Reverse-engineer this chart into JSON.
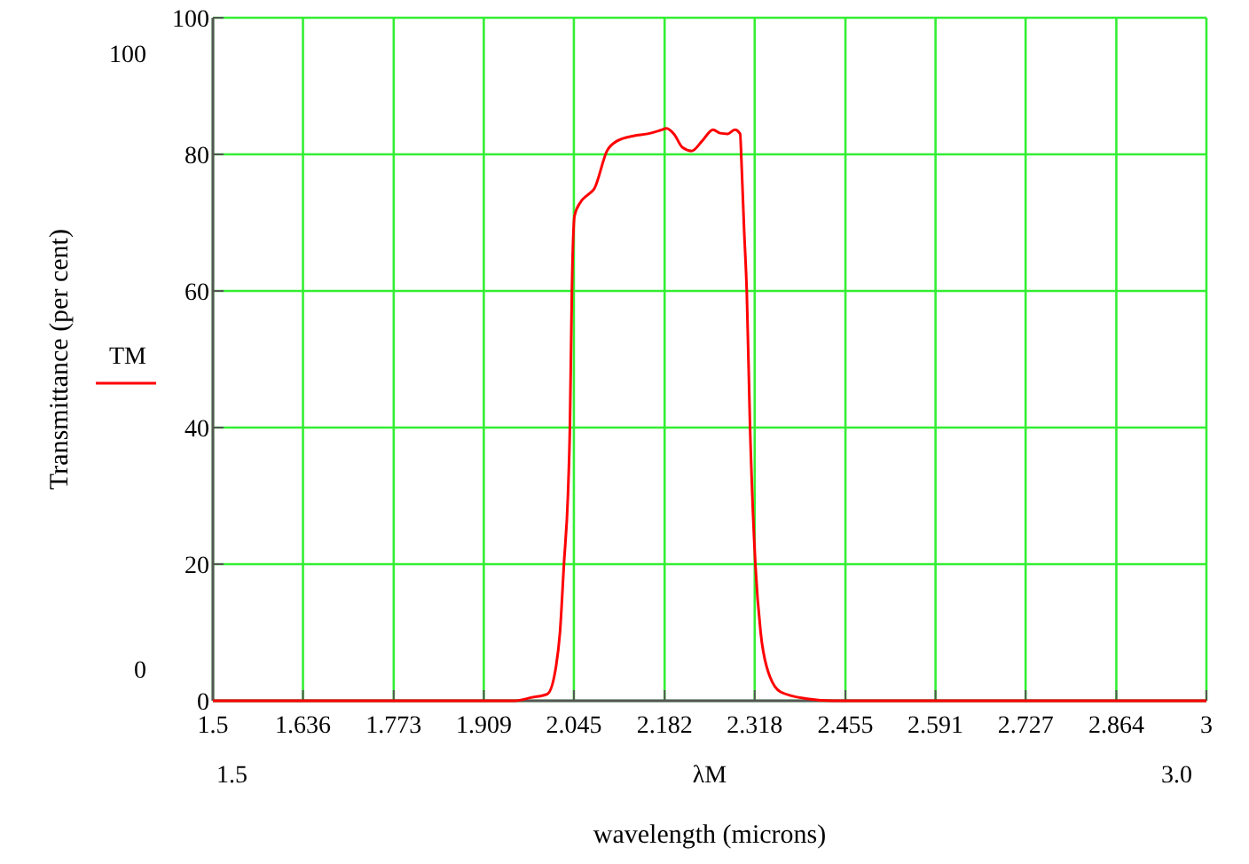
{
  "chart_data": {
    "type": "line",
    "xlabel": "wavelength (microns)",
    "ylabel": "Transmittance (per cent)",
    "annotations": [
      "100",
      "0",
      "1.5",
      "λM",
      "3.0"
    ],
    "xlim": [
      1.5,
      3
    ],
    "xticks": [
      1.5,
      1.636,
      1.773,
      1.909,
      2.045,
      2.182,
      2.318,
      2.455,
      2.591,
      2.727,
      2.864,
      3
    ],
    "ylim": [
      0,
      100
    ],
    "yticks": [
      0,
      20,
      40,
      60,
      80,
      100
    ],
    "grid": true,
    "legend": "left",
    "line_style": "solid",
    "marker": "none",
    "series": [
      {
        "name": "TM",
        "color": "#ff0000",
        "x": [
          1.5,
          1.9,
          1.955,
          1.982,
          2.005,
          2.018,
          2.024,
          2.03,
          2.036,
          2.039,
          2.042,
          2.046,
          2.055,
          2.065,
          2.076,
          2.095,
          2.111,
          2.135,
          2.156,
          2.175,
          2.185,
          2.196,
          2.209,
          2.223,
          2.239,
          2.255,
          2.266,
          2.277,
          2.288,
          2.296,
          2.298,
          2.302,
          2.306,
          2.311,
          2.319,
          2.327,
          2.336,
          2.357,
          2.397,
          2.438,
          2.6,
          3
        ],
        "values": [
          0,
          0,
          0,
          0.5,
          1,
          5,
          10,
          20,
          30,
          40,
          60,
          71,
          73,
          74,
          75,
          80.5,
          82,
          82.7,
          83,
          83.5,
          83.8,
          83,
          81,
          80.5,
          82,
          83.6,
          83.1,
          83,
          83.6,
          83,
          79,
          69,
          60,
          40,
          20,
          10,
          5,
          1.3,
          0.3,
          0,
          0,
          0
        ]
      }
    ]
  }
}
